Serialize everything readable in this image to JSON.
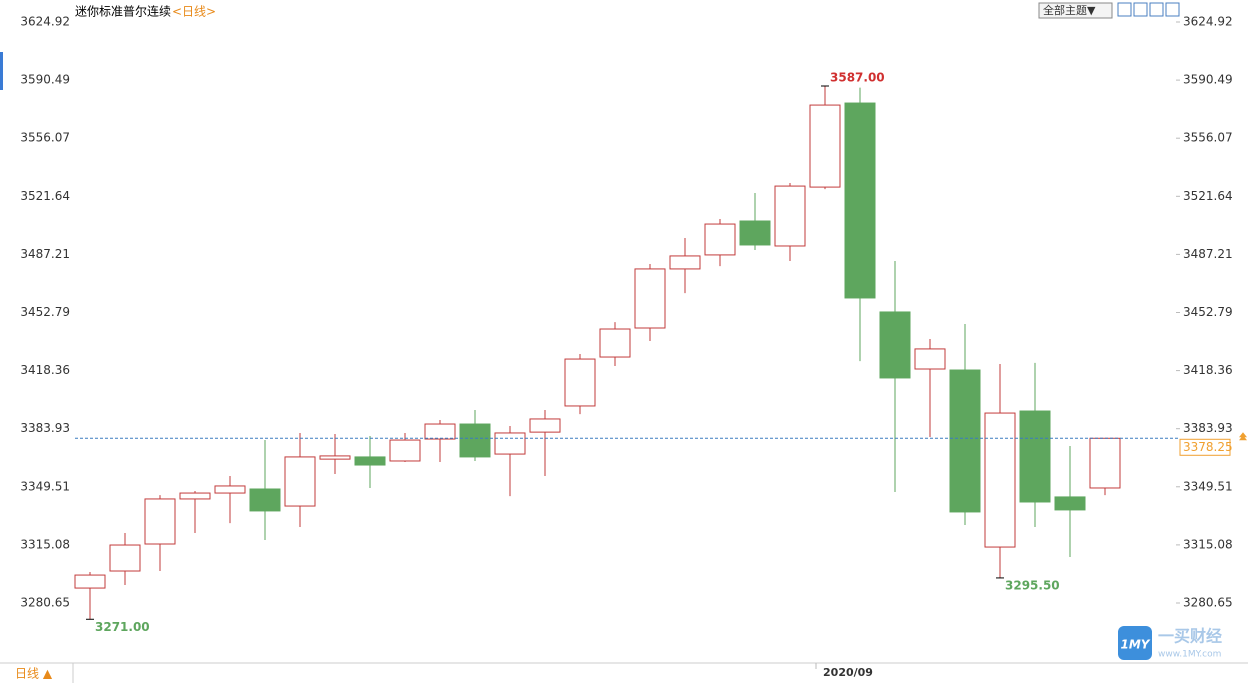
{
  "chart_data": {
    "type": "candlestick",
    "title": "迷你标准普尔连续",
    "period": "<日线>",
    "toolbar": {
      "theme_button": "全部主题▼",
      "period_button": "日线 ▲"
    },
    "watermark": {
      "logo": "1MY",
      "name": "一买财经",
      "url": "www.1MY.com"
    },
    "categories": [
      null,
      null,
      null,
      null,
      null,
      null,
      null,
      null,
      null,
      null,
      null,
      null,
      null,
      null,
      null,
      null,
      null,
      null,
      null,
      null,
      null,
      "2020/09",
      null,
      null,
      null,
      null,
      null,
      null,
      null,
      null
    ],
    "series": {
      "open": [
        3289.5,
        3299.6,
        3315.6,
        3342.3,
        3345.8,
        3348.2,
        3338.1,
        3365.9,
        3367.2,
        3364.8,
        3377.8,
        3386.7,
        3368.9,
        3381.9,
        3397.4,
        3426.4,
        3443.6,
        3478.6,
        3486.9,
        3507.0,
        3492.2,
        3527.1,
        3576.9,
        3453.1,
        3419.3,
        3418.7,
        3313.8,
        3394.4,
        3343.5,
        3348.8
      ],
      "high": [
        3299.0,
        3322.1,
        3344.6,
        3347.0,
        3355.9,
        3377.2,
        3381.4,
        3380.8,
        3379.6,
        3381.4,
        3389.1,
        3395.0,
        3385.5,
        3395.0,
        3428.2,
        3447.1,
        3481.5,
        3496.9,
        3508.2,
        3523.6,
        3529.5,
        3587.0,
        3586.0,
        3483.3,
        3437.1,
        3446.0,
        3422.3,
        3422.9,
        3373.7,
        3378.25
      ],
      "low": [
        3271.0,
        3291.3,
        3299.6,
        3322.1,
        3328.0,
        3318.0,
        3325.7,
        3357.1,
        3348.8,
        3364.2,
        3364.2,
        3364.8,
        3344.0,
        3355.9,
        3392.6,
        3421.1,
        3435.9,
        3464.3,
        3480.3,
        3489.8,
        3483.3,
        3525.9,
        3424.0,
        3346.4,
        3379.0,
        3326.9,
        3295.5,
        3325.7,
        3307.9,
        3344.6
      ],
      "close": [
        3297.2,
        3315.0,
        3342.3,
        3345.8,
        3350.0,
        3335.2,
        3367.2,
        3367.8,
        3362.4,
        3377.2,
        3386.7,
        3367.2,
        3381.4,
        3389.7,
        3425.2,
        3443.0,
        3478.6,
        3486.3,
        3505.2,
        3492.8,
        3527.7,
        3575.7,
        3461.4,
        3414.0,
        3431.2,
        3334.6,
        3393.2,
        3340.5,
        3335.8,
        3378.25
      ]
    },
    "up_color": "#c23b3b",
    "down_color": "#5ea65e",
    "ylim": [
      3245.09,
      3637.96
    ],
    "yticks": [
      3280.65,
      3315.08,
      3349.51,
      3383.93,
      3418.36,
      3452.79,
      3487.21,
      3521.64,
      3556.07,
      3590.49,
      3624.92
    ],
    "last_price": 3378.25,
    "last_price_color": "#f0a030",
    "annotations": [
      {
        "value": 3587,
        "label": "3587.00",
        "color": "#d03030"
      },
      {
        "value": 3271,
        "label": "3271.00",
        "color": "#5ea65e"
      },
      {
        "value": 3295.5,
        "label": "3295.50",
        "color": "#5ea65e"
      }
    ]
  }
}
